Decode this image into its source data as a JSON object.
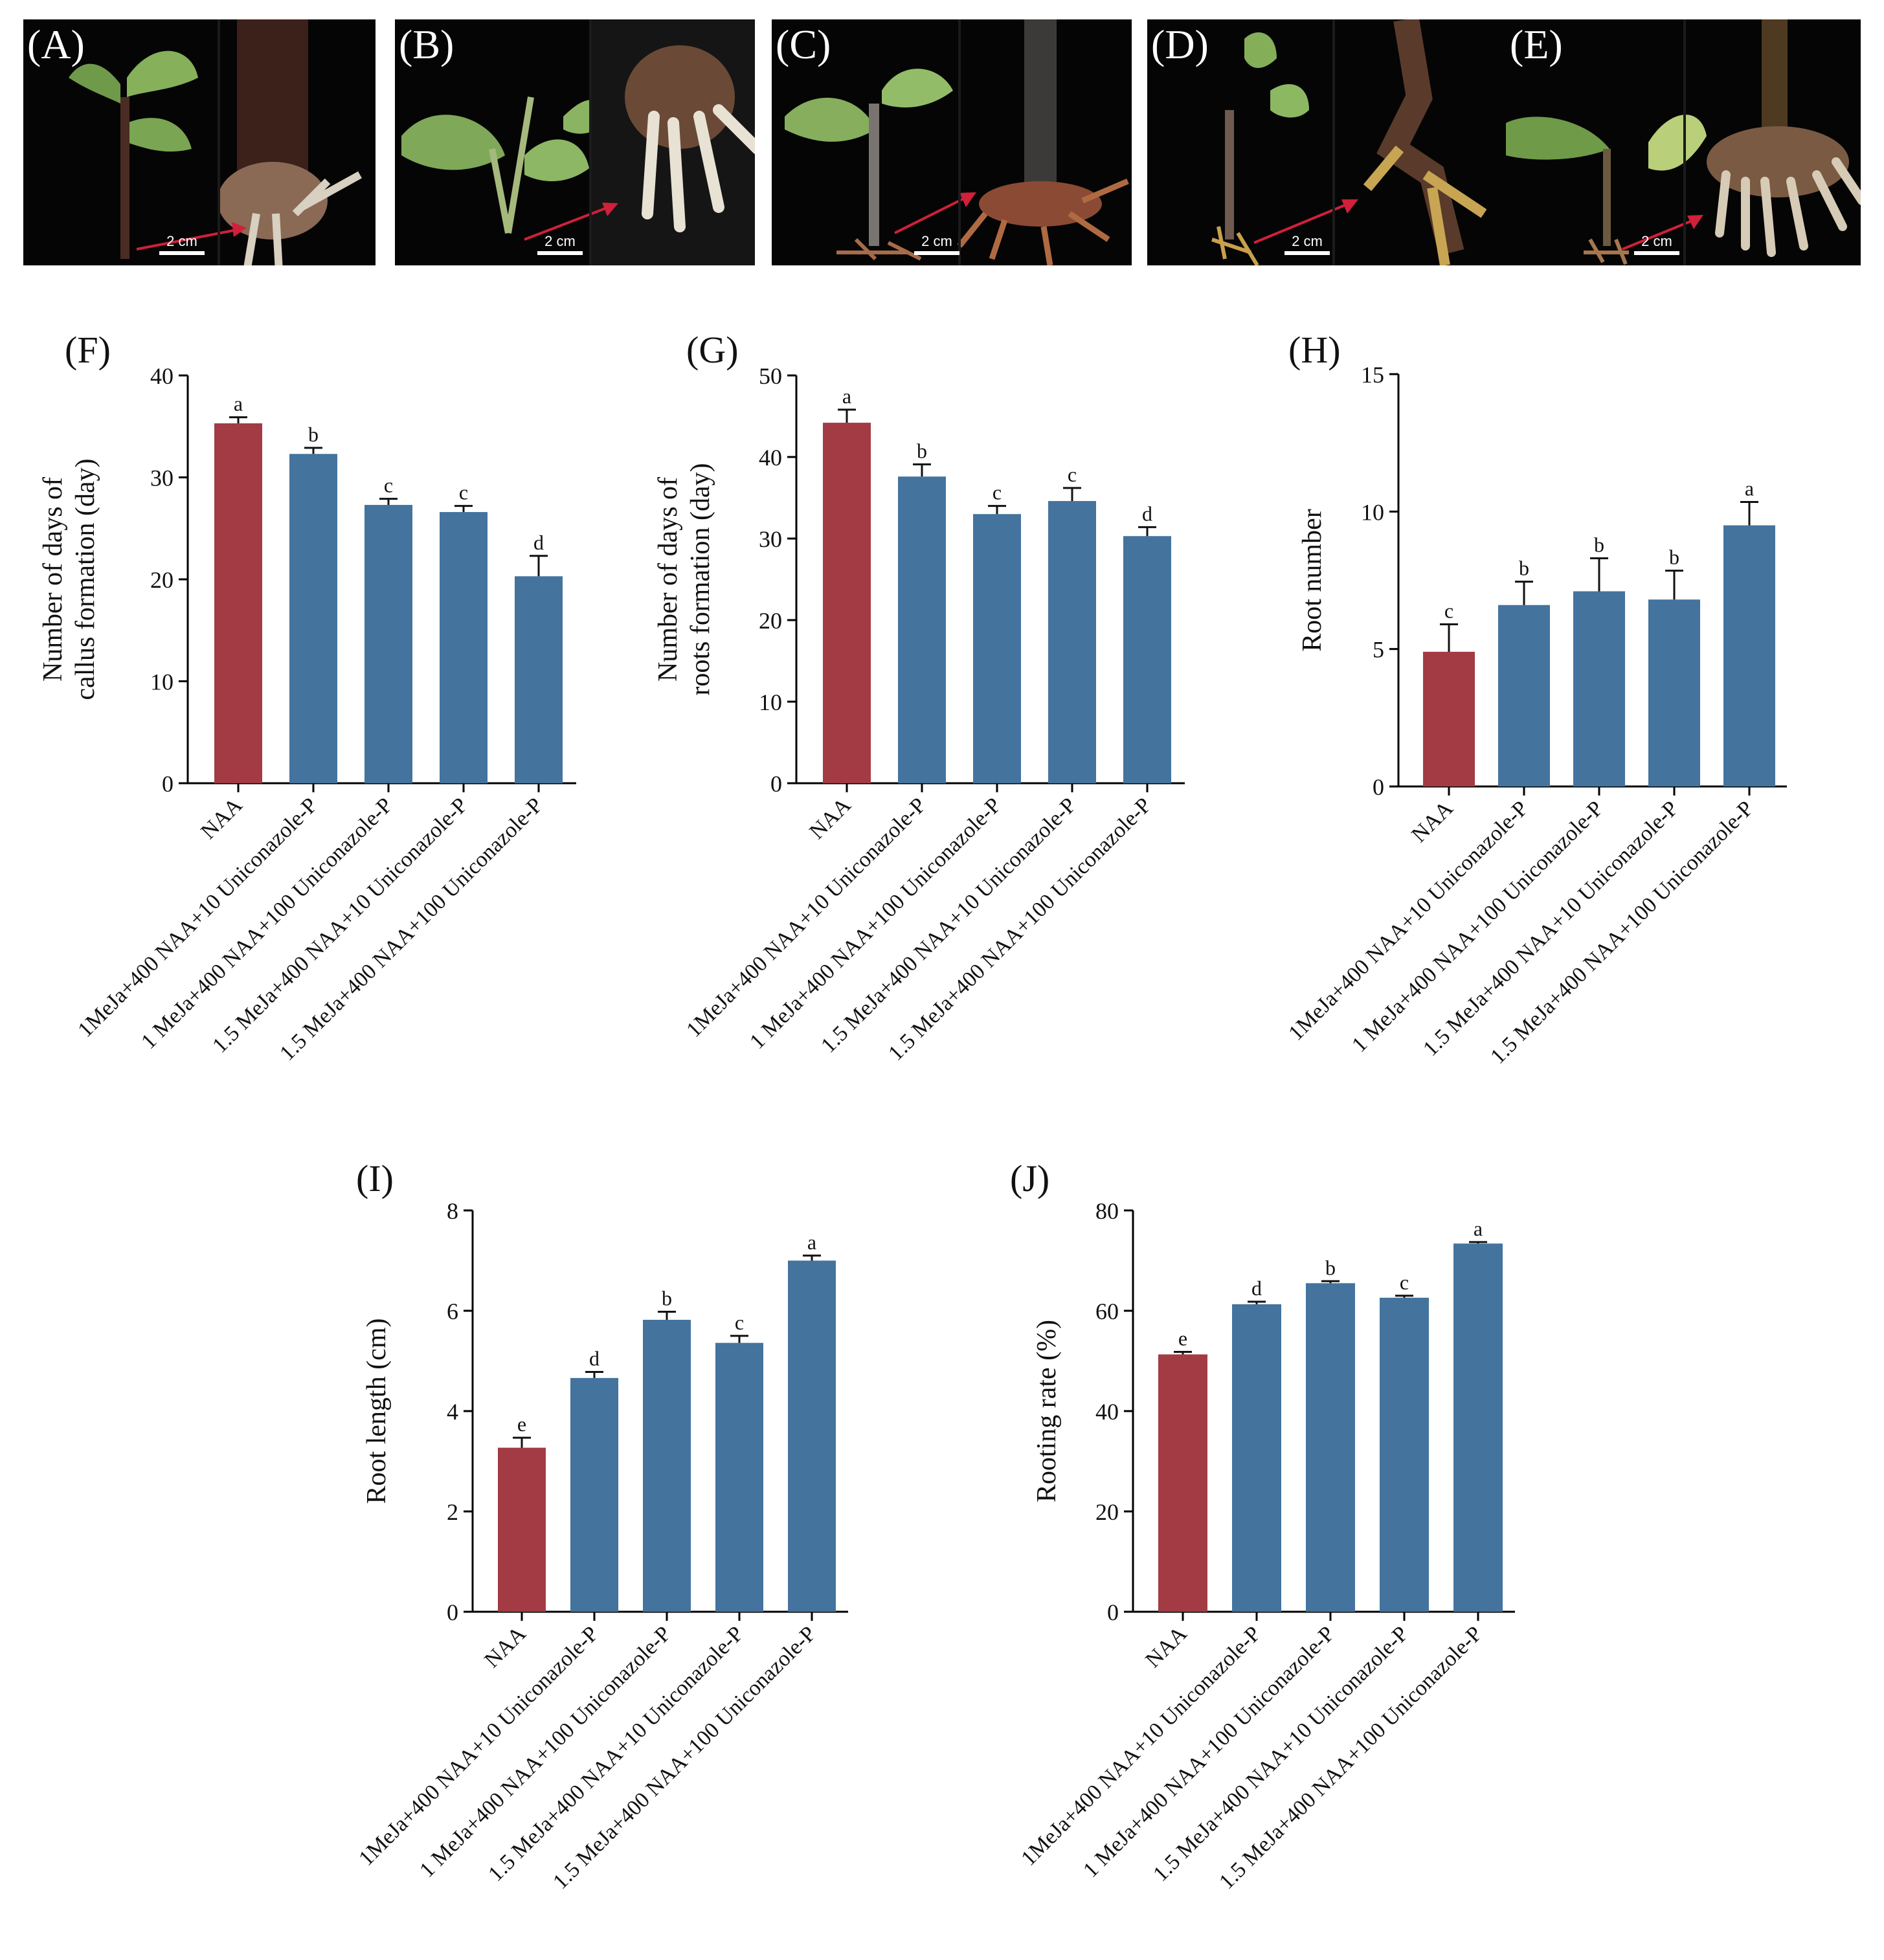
{
  "photos": [
    {
      "letter": "(A)",
      "scale": "2 cm"
    },
    {
      "letter": "(B)",
      "scale": "2 cm"
    },
    {
      "letter": "(C)",
      "scale": "2 cm"
    },
    {
      "letter": "(D)",
      "scale": "2 cm"
    },
    {
      "letter": "(E)",
      "scale": "2 cm"
    }
  ],
  "colors": {
    "naa": "#A23B43",
    "treatment": "#44739E",
    "axis": "#000000",
    "photo_bg": "#050505",
    "arrow": "#d0203a"
  },
  "chart_data": [
    {
      "panel": "(F)",
      "type": "bar",
      "categories": [
        "NAA",
        "1MeJa+400 NAA+10 Uniconazole-P",
        "1  MeJa+400 NAA+100 Uniconazole-P",
        "1.5  MeJa+400 NAA+10 Uniconazole-P",
        "1.5  MeJa+400 NAA+100 Uniconazole-P"
      ],
      "values": [
        35.3,
        32.3,
        27.3,
        26.6,
        20.3
      ],
      "errors": [
        0.6,
        0.6,
        0.6,
        0.6,
        2.0
      ],
      "letters": [
        "a",
        "b",
        "c",
        "c",
        "d"
      ],
      "ylabel": [
        "Number of days of",
        "callus formation (day)"
      ],
      "ylim": [
        0,
        40
      ],
      "yticks": [
        0,
        10,
        20,
        30,
        40
      ]
    },
    {
      "panel": "(G)",
      "type": "bar",
      "categories": [
        "NAA",
        "1MeJa+400 NAA+10 Uniconazole-P",
        "1  MeJa+400 NAA+100 Uniconazole-P",
        "1.5  MeJa+400 NAA+10 Uniconazole-P",
        "1.5  MeJa+400 NAA+100 Uniconazole-P"
      ],
      "values": [
        44.2,
        37.6,
        33.0,
        34.6,
        30.3
      ],
      "errors": [
        1.6,
        1.5,
        1.0,
        1.6,
        1.1
      ],
      "letters": [
        "a",
        "b",
        "c",
        "c",
        "d"
      ],
      "ylabel": [
        "Number of days of",
        "roots formation (day)"
      ],
      "ylim": [
        0,
        50
      ],
      "yticks": [
        0,
        10,
        20,
        30,
        40,
        50
      ]
    },
    {
      "panel": "(H)",
      "type": "bar",
      "categories": [
        "NAA",
        "1MeJa+400 NAA+10 Uniconazole-P",
        "1  MeJa+400 NAA+100 Uniconazole-P",
        "1.5  MeJa+400 NAA+10 Uniconazole-P",
        "1.5  MeJa+400 NAA+100 Uniconazole-P"
      ],
      "values": [
        4.9,
        6.6,
        7.1,
        6.8,
        9.5
      ],
      "errors": [
        1.0,
        0.85,
        1.2,
        1.05,
        0.85
      ],
      "letters": [
        "c",
        "b",
        "b",
        "b",
        "a"
      ],
      "ylabel": [
        "Root number"
      ],
      "ylim": [
        0,
        15
      ],
      "yticks": [
        0,
        5,
        10,
        15
      ]
    },
    {
      "panel": "(I)",
      "type": "bar",
      "categories": [
        "NAA",
        "1MeJa+400 NAA+10 Uniconazole-P",
        "1  MeJa+400 NAA+100 Uniconazole-P",
        "1.5  MeJa+400 NAA+10 Uniconazole-P",
        "1.5  MeJa+400 NAA+100 Uniconazole-P"
      ],
      "values": [
        3.27,
        4.66,
        5.82,
        5.36,
        7.0
      ],
      "errors": [
        0.2,
        0.12,
        0.16,
        0.14,
        0.1
      ],
      "letters": [
        "e",
        "d",
        "b",
        "c",
        "a"
      ],
      "ylabel": [
        "Root length (cm)"
      ],
      "ylim": [
        0,
        8
      ],
      "yticks": [
        0,
        2,
        4,
        6,
        8
      ]
    },
    {
      "panel": "(J)",
      "type": "bar",
      "categories": [
        "NAA",
        "1MeJa+400 NAA+10 Uniconazole-P",
        "1  MeJa+400 NAA+100 Uniconazole-P",
        "1.5  MeJa+400 NAA+10 Uniconazole-P",
        "1.5  MeJa+400 NAA+100 Uniconazole-P"
      ],
      "values": [
        51.3,
        61.3,
        65.5,
        62.6,
        73.4
      ],
      "errors": [
        0.5,
        0.5,
        0.4,
        0.4,
        0.3
      ],
      "letters": [
        "e",
        "d",
        "b",
        "c",
        "a"
      ],
      "ylabel": [
        "Rooting rate (%)"
      ],
      "ylim": [
        0,
        80
      ],
      "yticks": [
        0,
        20,
        40,
        60,
        80
      ]
    }
  ]
}
